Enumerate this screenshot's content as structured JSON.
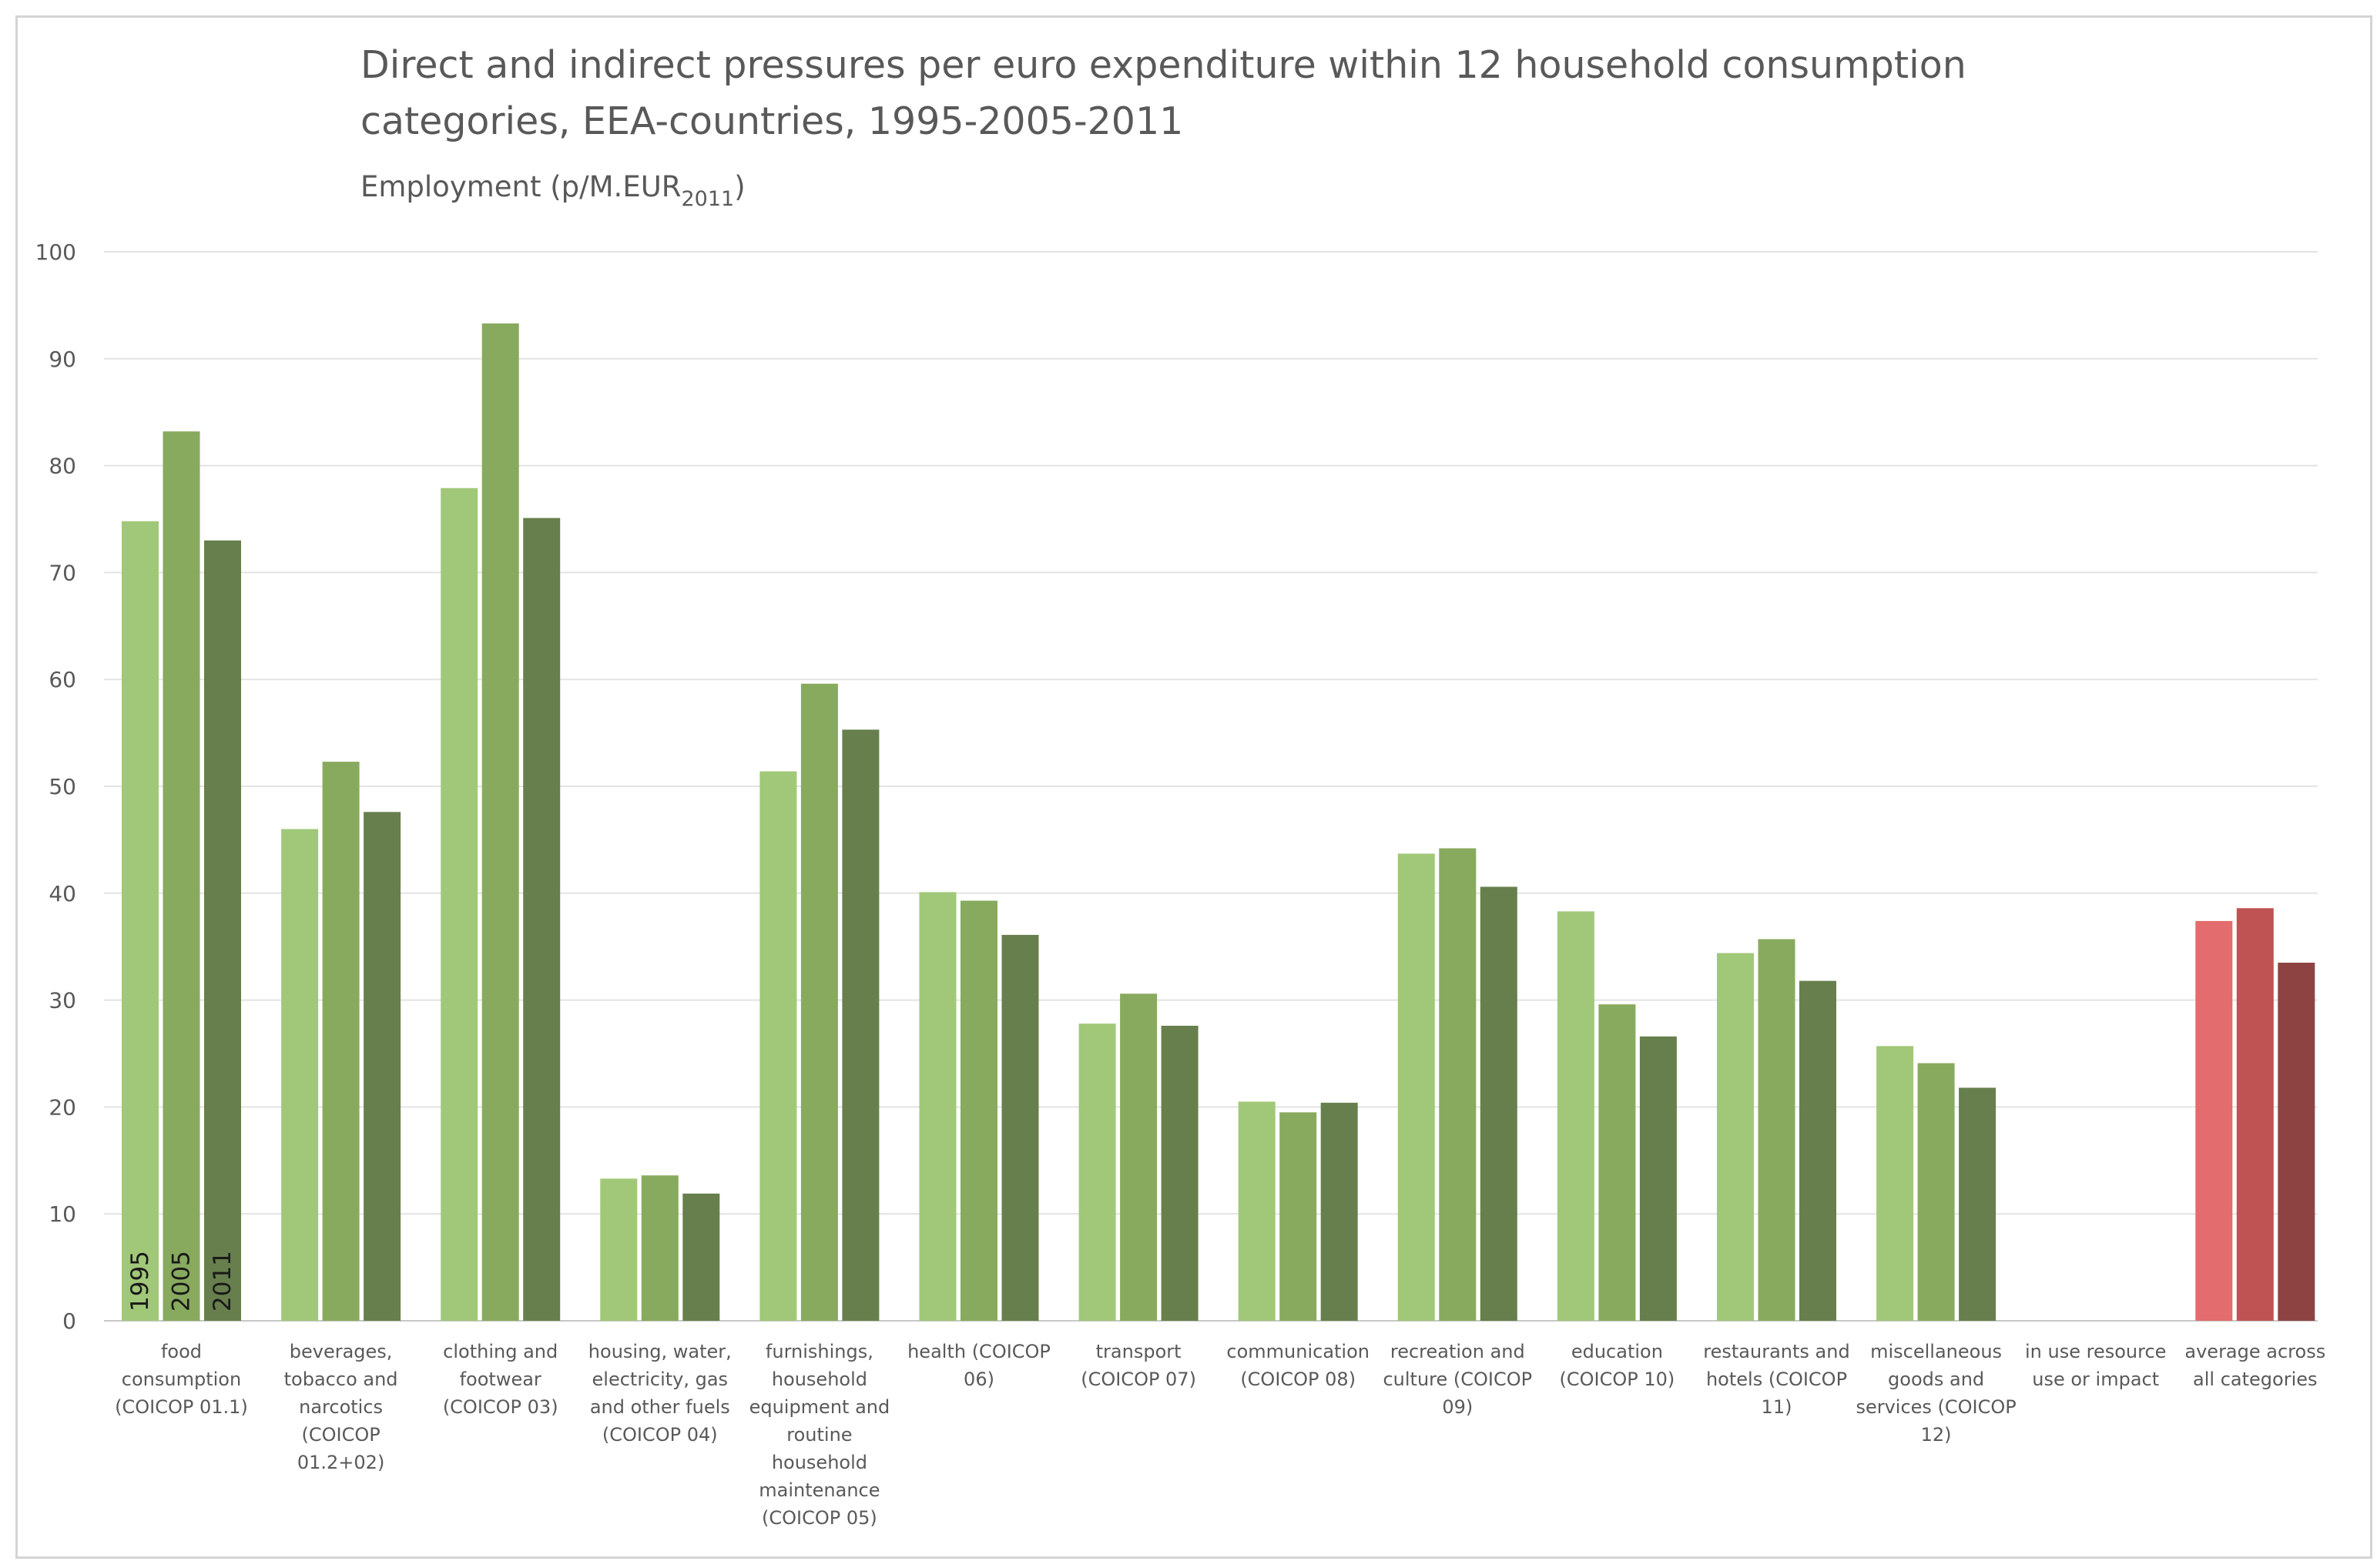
{
  "chart_data": {
    "type": "bar",
    "title_lines": [
      "Direct and indirect pressures per euro expenditure within 12 household consumption",
      "categories, EEA-countries, 1995-2005-2011"
    ],
    "subtitle": {
      "main": "Employment (p/M.EUR",
      "sub": "2011",
      "close": ")"
    },
    "ylim": [
      0,
      100
    ],
    "yticks": [
      "0",
      "10",
      "20",
      "30",
      "40",
      "50",
      "60",
      "70",
      "80",
      "90",
      "100"
    ],
    "series_names": [
      "1995",
      "2005",
      "2011"
    ],
    "categories": [
      {
        "label": [
          "food",
          "consumption",
          "(COICOP 01.1)"
        ],
        "values": [
          74.8,
          83.2,
          73.0
        ]
      },
      {
        "label": [
          "beverages,",
          "tobacco and",
          "narcotics",
          "(COICOP",
          "01.2+02)"
        ],
        "values": [
          46.0,
          52.3,
          47.6
        ]
      },
      {
        "label": [
          "clothing and",
          "footwear",
          "(COICOP 03)"
        ],
        "values": [
          77.9,
          93.3,
          75.1
        ]
      },
      {
        "label": [
          "housing, water,",
          "electricity, gas",
          "and other fuels",
          "(COICOP 04)"
        ],
        "values": [
          13.3,
          13.6,
          11.9
        ]
      },
      {
        "label": [
          "furnishings,",
          "household",
          "equipment and",
          "routine",
          "household",
          "maintenance",
          "(COICOP 05)"
        ],
        "values": [
          51.4,
          59.6,
          55.3
        ]
      },
      {
        "label": [
          "health (COICOP",
          "06)"
        ],
        "values": [
          40.1,
          39.3,
          36.1
        ]
      },
      {
        "label": [
          "transport",
          "(COICOP 07)"
        ],
        "values": [
          27.8,
          30.6,
          27.6
        ]
      },
      {
        "label": [
          "communication",
          "(COICOP 08)"
        ],
        "values": [
          20.5,
          19.5,
          20.4
        ]
      },
      {
        "label": [
          "recreation and",
          "culture (COICOP",
          "09)"
        ],
        "values": [
          43.7,
          44.2,
          40.6
        ]
      },
      {
        "label": [
          "education",
          "(COICOP 10)"
        ],
        "values": [
          38.3,
          29.6,
          26.6
        ]
      },
      {
        "label": [
          "restaurants and",
          "hotels (COICOP",
          "11)"
        ],
        "values": [
          34.4,
          35.7,
          31.8
        ]
      },
      {
        "label": [
          "miscellaneous",
          "goods and",
          "services (COICOP",
          "12)"
        ],
        "values": [
          25.7,
          24.1,
          21.8
        ]
      },
      {
        "label": [
          "in use resource",
          "use or impact"
        ],
        "values": [
          0,
          0,
          0
        ]
      },
      {
        "label": [
          "average across",
          "all categories"
        ],
        "values": [
          37.4,
          38.6,
          33.5
        ],
        "highlight": true
      }
    ],
    "colors": {
      "green": [
        "#a1c878",
        "#88aa5e",
        "#677f4c"
      ],
      "red": [
        "#e36c6e",
        "#bf5353",
        "#8e4343"
      ]
    }
  }
}
